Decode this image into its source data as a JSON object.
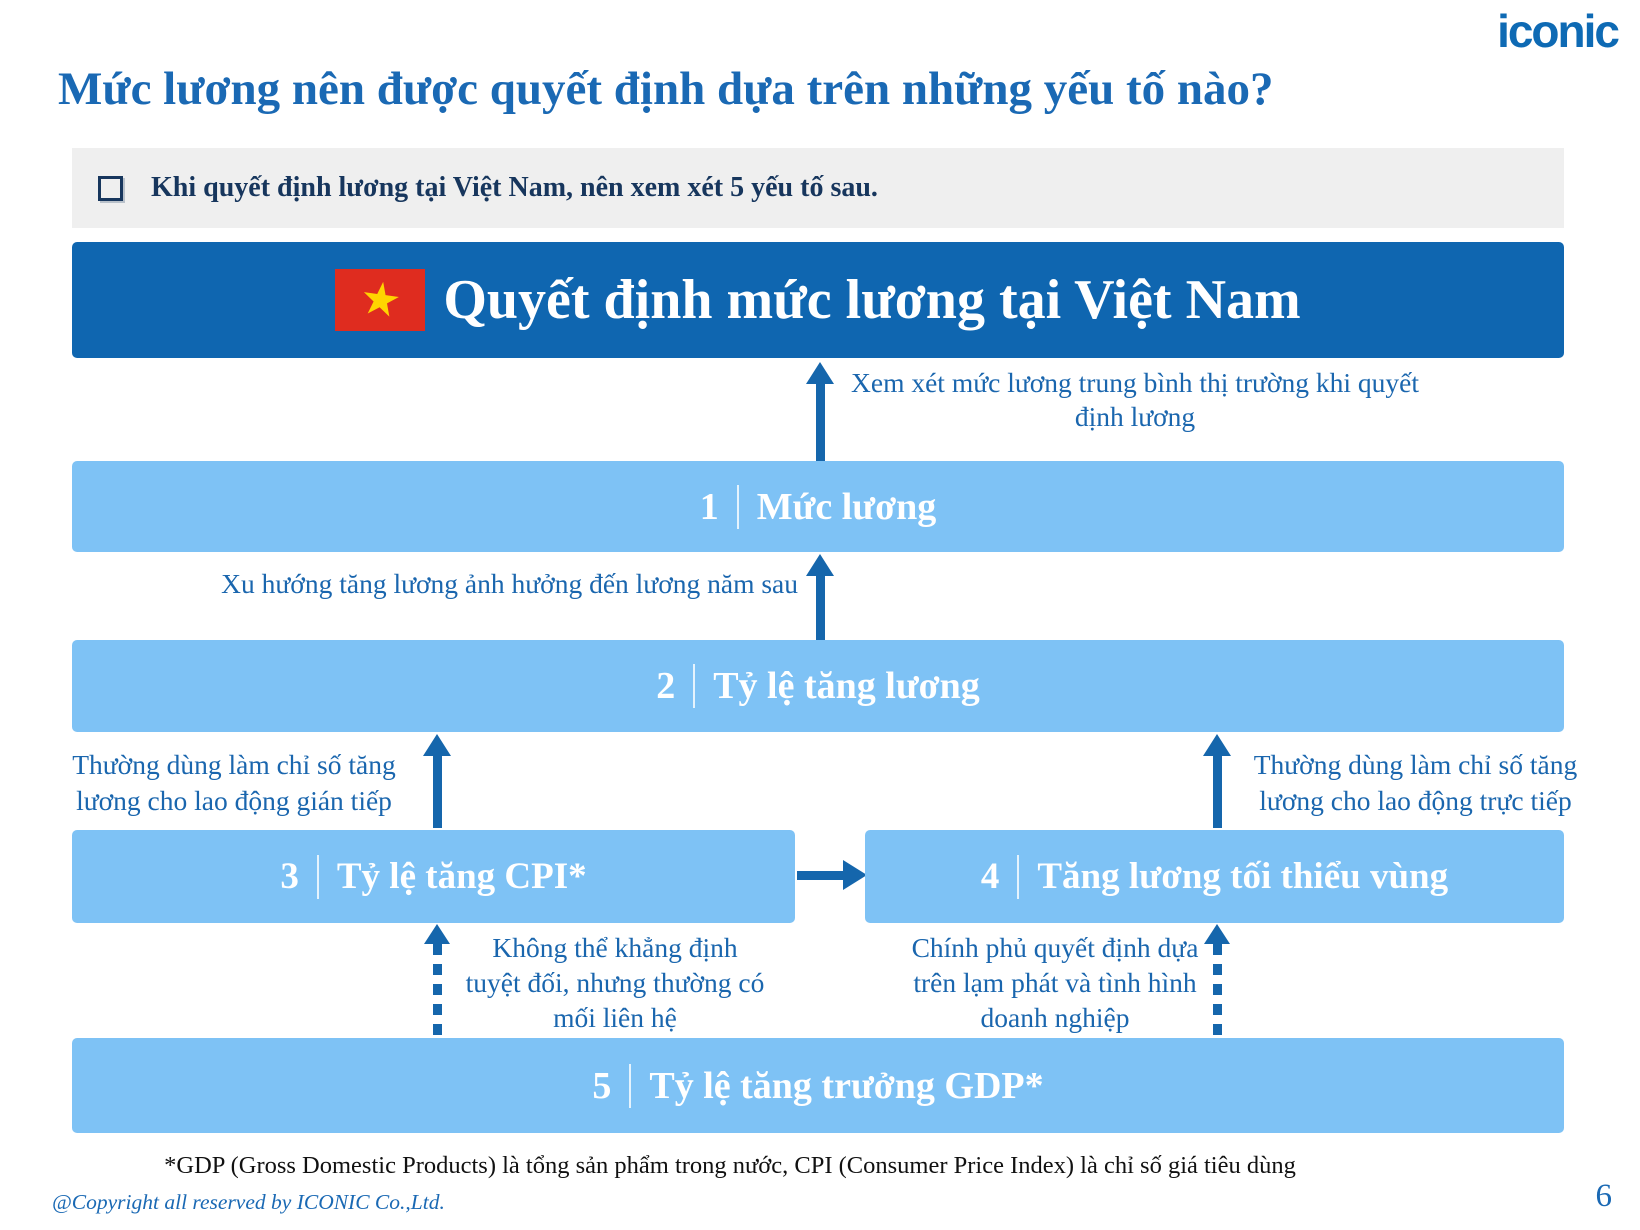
{
  "brand": {
    "logo": "iconic",
    "copyright": "@Copyright all reserved by ICONIC Co.,Ltd.",
    "page_number": "6"
  },
  "title": "Mức lương nên được quyết định dựa trên những yếu tố nào?",
  "note_bar": {
    "text": "Khi quyết định lương tại Việt Nam, nên xem xét 5 yếu tố sau."
  },
  "banner": {
    "title": "Quyết định mức lương tại Việt Nam",
    "flag_icon": "vietnam-flag",
    "star": "★"
  },
  "factors": [
    {
      "number": "1",
      "label": "Mức lương"
    },
    {
      "number": "2",
      "label": "Tỷ lệ tăng lương"
    },
    {
      "number": "3",
      "label": "Tỷ lệ tăng CPI*"
    },
    {
      "number": "4",
      "label": "Tăng lương tối thiểu vùng"
    },
    {
      "number": "5",
      "label": "Tỷ lệ tăng trưởng GDP*"
    }
  ],
  "annotations": {
    "market_average": "Xem xét mức lương trung bình thị trường khi quyết định lương",
    "trend": "Xu hướng tăng lương ảnh hưởng đến lương năm sau",
    "indirect_labor": "Thường dùng làm chỉ số tăng lương cho lao động gián tiếp",
    "direct_labor": "Thường dùng làm chỉ số tăng lương cho lao động trực tiếp",
    "cpi_link": "Không thể khẳng định tuyệt đối, nhưng thường có mối liên hệ",
    "government": "Chính phủ quyết định dựa trên lạm phát và tình hình doanh nghiệp"
  },
  "footnote": "*GDP (Gross Domestic Products) là tổng sản phẩm trong nước, CPI (Consumer Price Index) là chỉ số giá tiêu dùng",
  "colors": {
    "brand_blue": "#0e6ab4",
    "title_blue": "#1a69b4",
    "banner_blue": "#0f66b0",
    "light_blue": "#7ec2f5",
    "arrow_blue": "#1566ac",
    "navy_text": "#17365d",
    "note_bar_gray": "#efefef",
    "flag_red": "#df2c1f",
    "star_yellow": "#ffd400"
  }
}
